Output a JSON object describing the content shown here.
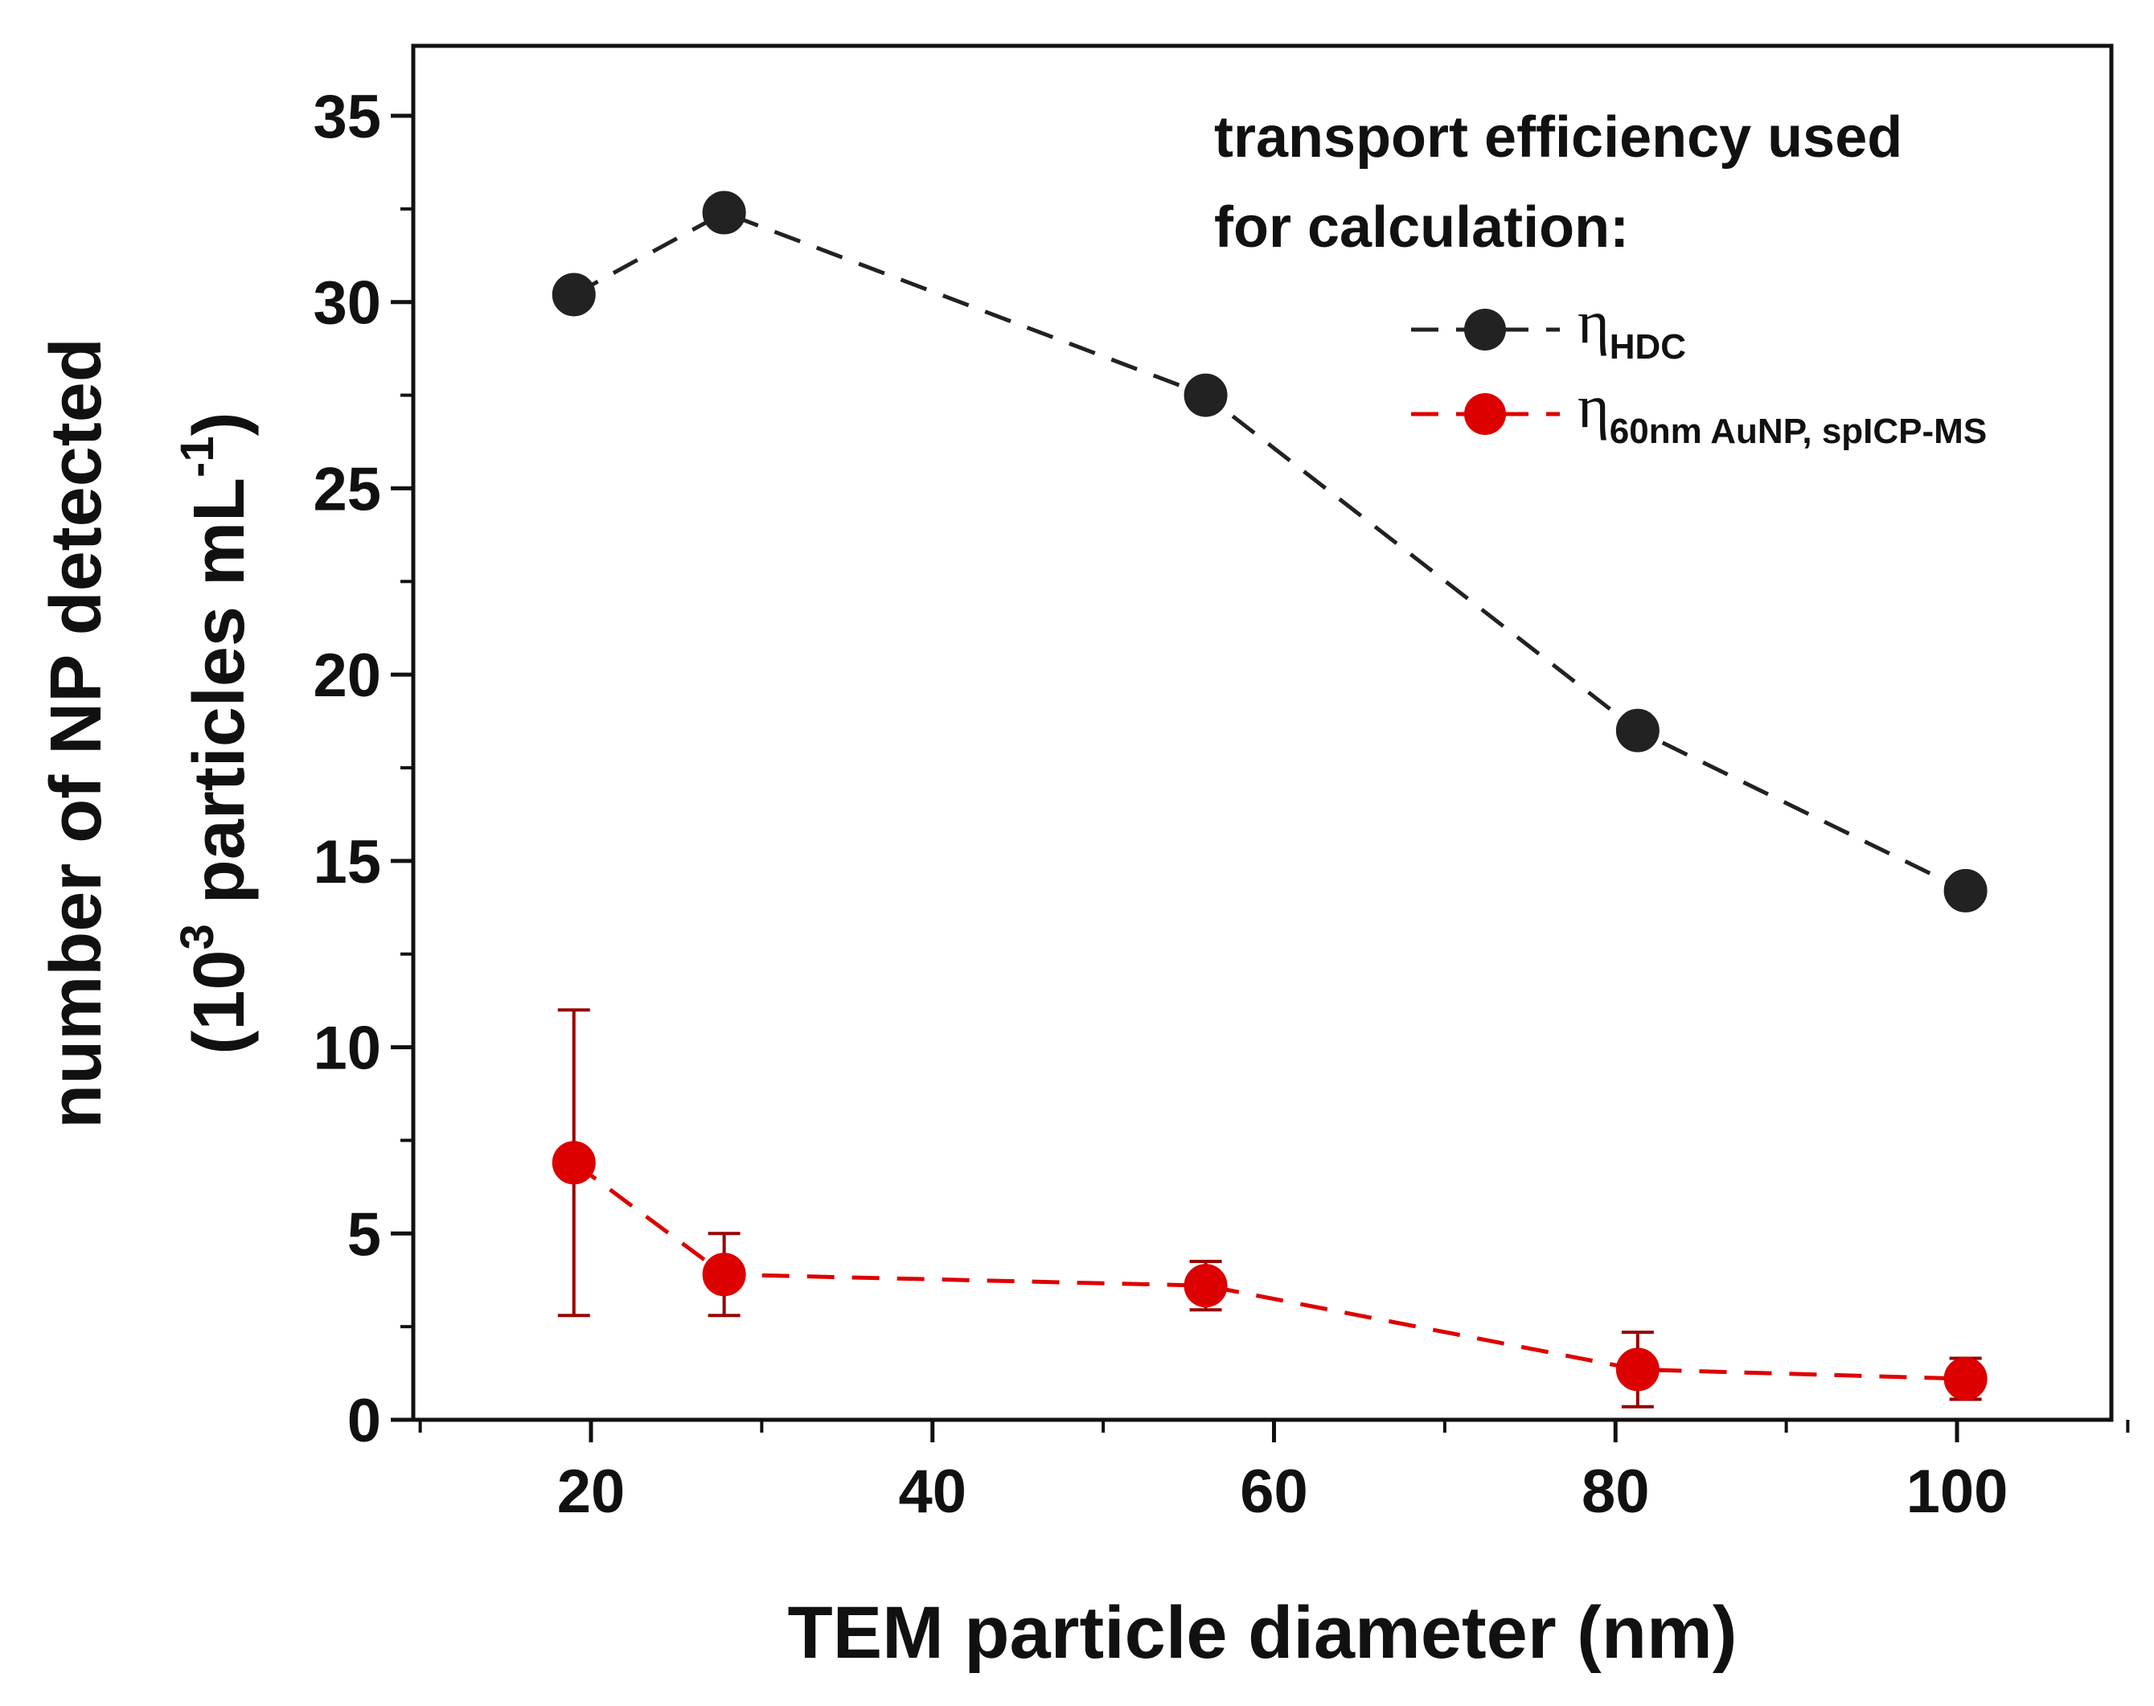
{
  "chart_data": {
    "type": "scatter",
    "title": "",
    "xlabel": "TEM particle diameter (nm)",
    "ylabel_line1": "number of NP detected",
    "ylabel_line2": {
      "pre": "(10",
      "sup": "3",
      "mid": " particles mL",
      "sup2": "-1",
      "post": ")"
    },
    "xlim": [
      10,
      110
    ],
    "ylim": [
      0,
      35
    ],
    "xticks": [
      20,
      40,
      60,
      80,
      100
    ],
    "yticks": [
      0,
      5,
      10,
      15,
      20,
      25,
      30,
      35
    ],
    "grid": false,
    "legend_position": "top-right",
    "legend_title_line1": "transport efficiency used",
    "legend_title_line2": "for calculation:",
    "series": [
      {
        "name": "η",
        "name_sub": "HDC",
        "color": "#222222",
        "line_style": "dashed",
        "x": [
          19,
          27.8,
          56,
          81.3,
          100.5
        ],
        "y": [
          30.2,
          32.4,
          27.5,
          18.5,
          14.2
        ],
        "yerr": [
          0,
          0,
          0,
          0,
          0
        ]
      },
      {
        "name": "η",
        "name_sub": "60nm AuNP, spICP-MS",
        "color": "#dd0000",
        "error_color": "#990000",
        "line_style": "dashed",
        "x": [
          19,
          27.8,
          56,
          81.3,
          100.5
        ],
        "y": [
          6.9,
          3.9,
          3.6,
          1.35,
          1.1
        ],
        "yerr": [
          4.1,
          1.1,
          0.65,
          1.0,
          0.55
        ]
      }
    ]
  }
}
